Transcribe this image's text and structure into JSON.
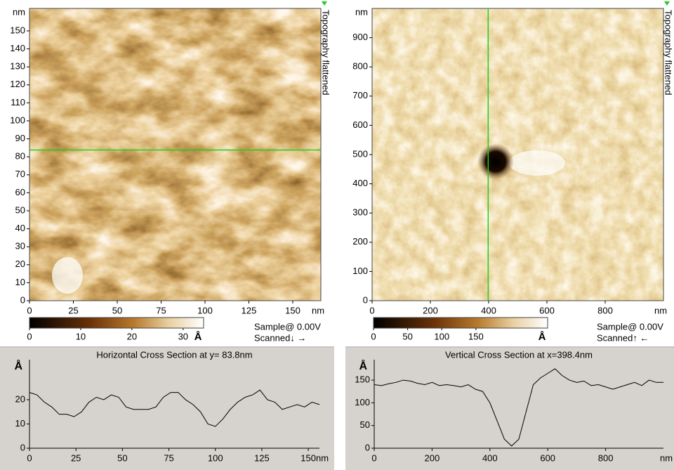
{
  "chart_data": [
    {
      "type": "image",
      "title": "Topography flattened",
      "x_unit": "nm",
      "y_unit": "nm",
      "xlim": [
        0,
        166
      ],
      "ylim": [
        0,
        162.5
      ],
      "xticks": [
        0,
        25,
        50,
        75,
        100,
        125,
        150
      ],
      "yticks": [
        0,
        10,
        20,
        30,
        40,
        50,
        60,
        70,
        80,
        90,
        100,
        110,
        120,
        130,
        140,
        150
      ],
      "colorbar": {
        "lim": [
          0,
          34
        ],
        "ticks": [
          0,
          10,
          20,
          30
        ],
        "unit": "Å"
      },
      "bias": "Sample@ 0.00V",
      "scan": "Scanned↓ →",
      "cursor": {
        "y": 83.8
      },
      "cursor_color": "#22cc22"
    },
    {
      "type": "image",
      "title": "Topography flattened",
      "x_unit": "nm",
      "y_unit": "nm",
      "xlim": [
        0,
        1000
      ],
      "ylim": [
        0,
        1000
      ],
      "xticks": [
        0,
        200,
        400,
        600,
        800
      ],
      "yticks": [
        0,
        100,
        200,
        300,
        400,
        500,
        600,
        700,
        800,
        900
      ],
      "colorbar": {
        "lim": [
          0,
          255
        ],
        "ticks": [
          0,
          50,
          100,
          150
        ],
        "unit": "Å"
      },
      "bias": "Sample@ 0.00V",
      "scan": "Scanned↑ ←",
      "cursor": {
        "x": 398.4
      },
      "cursor_color": "#22cc22"
    },
    {
      "type": "line",
      "title": "Horizontal Cross Section at y= 83.8nm",
      "x_unit": "nm",
      "y_unit": "Å",
      "xlim": [
        0,
        156
      ],
      "ylim": [
        0,
        36.5
      ],
      "xticks": [
        0,
        25,
        50,
        75,
        100,
        125,
        150
      ],
      "yticks": [
        0,
        10,
        20
      ],
      "color": "#000000",
      "x": [
        0,
        4,
        8,
        12,
        16,
        20,
        24,
        28,
        32,
        36,
        40,
        44,
        48,
        52,
        56,
        60,
        64,
        68,
        72,
        76,
        80,
        84,
        88,
        92,
        96,
        100,
        104,
        108,
        112,
        116,
        120,
        124,
        128,
        132,
        136,
        140,
        144,
        148,
        152,
        156
      ],
      "values": [
        23,
        22,
        19,
        17,
        14,
        14,
        13,
        15,
        19,
        21,
        20,
        22,
        21,
        17,
        16,
        16,
        16,
        17,
        21,
        23,
        23,
        20,
        18,
        15,
        10,
        9,
        12,
        16,
        19,
        21,
        22,
        24,
        20,
        19,
        16,
        17,
        18,
        17,
        19,
        18
      ]
    },
    {
      "type": "line",
      "title": "Vertical Cross Section at x=398.4nm",
      "x_unit": "nm",
      "y_unit": "Å",
      "xlim": [
        0,
        1000
      ],
      "ylim": [
        0,
        195
      ],
      "xticks": [
        0,
        200,
        400,
        600,
        800
      ],
      "yticks": [
        0,
        50,
        100,
        150
      ],
      "color": "#000000",
      "x": [
        0,
        25,
        50,
        75,
        100,
        125,
        150,
        175,
        200,
        225,
        250,
        275,
        300,
        325,
        350,
        375,
        400,
        425,
        450,
        475,
        500,
        525,
        550,
        575,
        600,
        625,
        650,
        675,
        700,
        725,
        750,
        775,
        800,
        825,
        850,
        875,
        900,
        925,
        950,
        975,
        1000
      ],
      "values": [
        140,
        138,
        142,
        145,
        150,
        148,
        143,
        140,
        145,
        138,
        140,
        138,
        135,
        140,
        130,
        125,
        100,
        60,
        20,
        5,
        20,
        80,
        140,
        155,
        165,
        175,
        160,
        150,
        145,
        148,
        138,
        140,
        135,
        130,
        135,
        140,
        145,
        138,
        150,
        145,
        145
      ]
    }
  ]
}
